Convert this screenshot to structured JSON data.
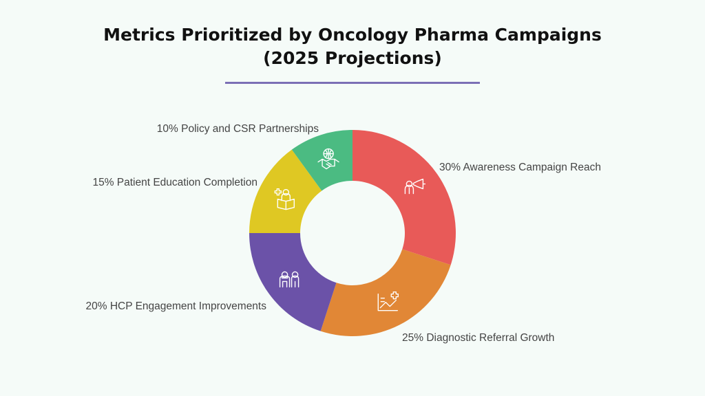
{
  "title": {
    "line1": "Metrics Prioritized by Oncology Pharma Campaigns",
    "line2": "(2025 Projections)"
  },
  "chart_data": {
    "type": "pie",
    "variant": "donut",
    "title": "Metrics Prioritized by Oncology Pharma Campaigns (2025 Projections)",
    "unit": "%",
    "start": "12 o'clock",
    "direction": "clockwise",
    "slices": [
      {
        "name": "Awareness Campaign Reach",
        "value": 30,
        "label": "30% Awareness Campaign Reach",
        "color": "#e85a58",
        "icon": "megaphone-person-icon"
      },
      {
        "name": "Diagnostic Referral Growth",
        "value": 25,
        "label": "25% Diagnostic Referral Growth",
        "color": "#e18736",
        "icon": "growth-chart-icon"
      },
      {
        "name": "HCP Engagement Improvements",
        "value": 20,
        "label": "20% HCP Engagement Improvements",
        "color": "#6b52a8",
        "icon": "doctor-patient-icon"
      },
      {
        "name": "Patient Education Completion",
        "value": 15,
        "label": "15% Patient Education Completion",
        "color": "#dfc823",
        "icon": "reading-person-icon"
      },
      {
        "name": "Policy and CSR Partnerships",
        "value": 10,
        "label": "10% Policy and CSR Partnerships",
        "color": "#4bbb82",
        "icon": "handshake-globe-icon"
      }
    ]
  },
  "colors": {
    "background": "#f5fbf8",
    "title": "#111111",
    "label": "#444444",
    "divider": "#7b6fb5"
  }
}
